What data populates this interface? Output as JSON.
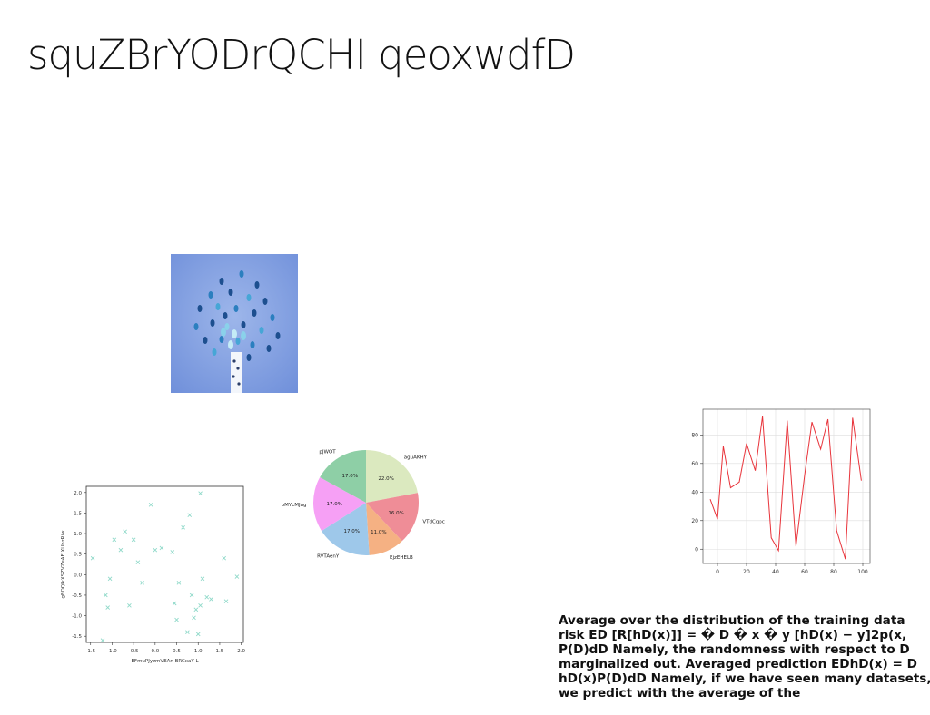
{
  "slide": {
    "title": "squZBrYODrQCHI qeoxwdfD",
    "body_text": "Average over the distribution of the training data risk ED [R[hD(x)]] = � D � x � y [hD(x) − y]2p(x, P(D)dD Namely, the randomness with respect to D marginalized out. Averaged prediction EDhD(x) = D hD(x)P(D)dD Namely, if we have seen many datasets, we predict with the average of the"
  },
  "chart_data": [
    {
      "type": "scatter",
      "title": "",
      "xlabel": "EFmuPJyzmVEAn BRCxaY L",
      "ylabel": "gEOQlkXSZVZeAF XUhzRiw",
      "xlim": [
        -1.6,
        2.05
      ],
      "ylim": [
        -1.65,
        2.15
      ],
      "xticks": [
        -1.5,
        -1.0,
        -0.5,
        0.0,
        0.5,
        1.0,
        1.5,
        2.0
      ],
      "xtick_labels": [
        "-1.5",
        "-1.0",
        "-0.5",
        "0.0",
        "0.5",
        "1.0",
        "1.5",
        "2.0"
      ],
      "yticks": [
        -1.5,
        -1.0,
        -0.5,
        0.0,
        0.5,
        1.0,
        1.5,
        2.0
      ],
      "ytick_labels": [
        "-1.5",
        "-1.0",
        "-0.5",
        "0.0",
        "0.5",
        "1.0",
        "1.5",
        "2.0"
      ],
      "grid": false,
      "marker": "x",
      "color": "#8fd9c9",
      "x": [
        -1.45,
        -1.22,
        -1.15,
        -1.1,
        -1.05,
        -0.95,
        -0.8,
        -0.7,
        -0.6,
        -0.5,
        -0.4,
        -0.3,
        -0.1,
        0.0,
        0.15,
        0.4,
        0.45,
        0.5,
        0.55,
        0.65,
        0.75,
        0.8,
        0.85,
        0.9,
        0.95,
        1.0,
        1.05,
        1.1,
        1.2,
        1.3,
        1.6,
        1.65,
        1.9,
        1.05
      ],
      "y": [
        0.4,
        -1.6,
        -0.5,
        -0.8,
        -0.1,
        0.85,
        0.6,
        1.05,
        -0.75,
        0.85,
        0.3,
        -0.2,
        1.7,
        0.6,
        0.65,
        0.55,
        -0.7,
        -1.1,
        -0.2,
        1.15,
        -1.4,
        1.45,
        -0.5,
        -1.05,
        -0.85,
        -1.45,
        -0.75,
        -0.1,
        -0.55,
        -0.6,
        0.4,
        -0.65,
        -0.05,
        1.98
      ]
    },
    {
      "type": "pie",
      "title": "",
      "labels": [
        "aguAKHY",
        "VTdCgpc",
        "EjzEHELB",
        "RVTAenY",
        "oMYcMJag",
        "pJWOT"
      ],
      "values": [
        22.0,
        16.0,
        11.0,
        17.0,
        17.0,
        17.0
      ],
      "value_labels": [
        "22.0%",
        "16.0%",
        "11.0%",
        "17.0%",
        "17.0%",
        "17.0%"
      ],
      "colors": [
        "#dbe9bf",
        "#ef8d97",
        "#f5b183",
        "#9ec8ea",
        "#f6a0f5",
        "#8ecfa6"
      ],
      "start_angle_deg": 90,
      "direction": "clockwise"
    },
    {
      "type": "line",
      "title": "",
      "xlabel": "",
      "ylabel": "",
      "xlim": [
        -10,
        105
      ],
      "ylim": [
        -10,
        98
      ],
      "xticks": [
        0,
        20,
        40,
        60,
        80,
        100
      ],
      "xtick_labels": [
        "0",
        "20",
        "40",
        "60",
        "80",
        "100"
      ],
      "yticks": [
        0,
        20,
        40,
        60,
        80
      ],
      "ytick_labels": [
        "0",
        "20",
        "40",
        "60",
        "80"
      ],
      "grid": true,
      "color": "#e8333a",
      "x": [
        -5,
        0,
        4,
        9,
        15,
        20,
        26,
        31,
        37,
        42,
        48,
        54,
        60,
        65,
        71,
        76,
        82,
        88,
        93,
        99
      ],
      "y": [
        35,
        21,
        72,
        43,
        47,
        74,
        55,
        93,
        8,
        -1,
        90,
        2,
        52,
        89,
        70,
        91,
        13,
        -7,
        92,
        48
      ]
    }
  ]
}
